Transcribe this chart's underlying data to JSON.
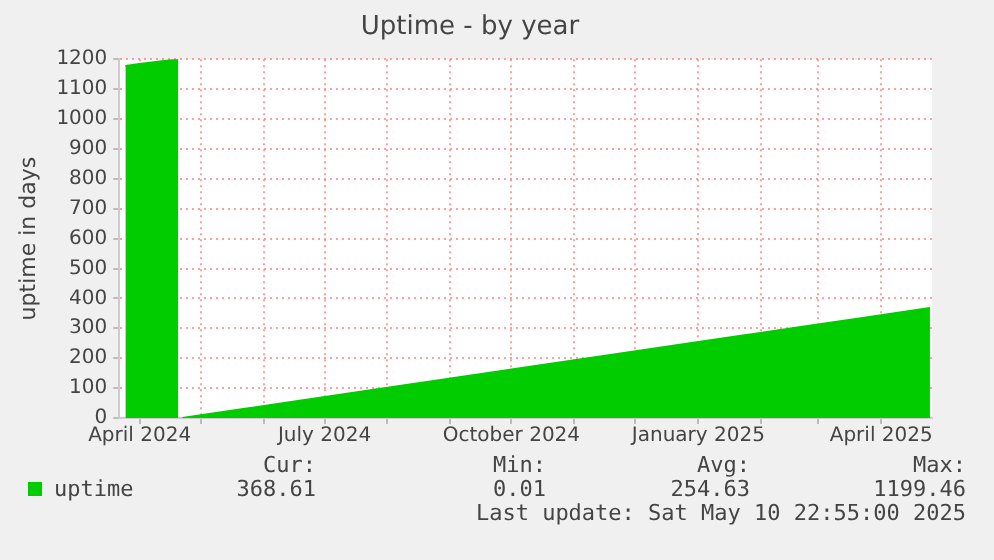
{
  "chart_data": {
    "type": "area",
    "title": "Uptime - by year",
    "ylabel": "uptime in days",
    "x": [
      "2024-03-25",
      "2024-04-01",
      "2024-04-08",
      "2024-04-15",
      "2024-04-20",
      "2024-04-21",
      "2024-04-22",
      "2024-05-22",
      "2024-06-22",
      "2024-07-22",
      "2024-08-22",
      "2024-09-22",
      "2024-10-22",
      "2024-11-22",
      "2024-12-22",
      "2025-01-22",
      "2025-02-22",
      "2025-03-22",
      "2025-04-25"
    ],
    "series": [
      {
        "name": "uptime",
        "color": "#00cc00",
        "values": [
          1177,
          1184,
          1190,
          1196,
          1199,
          null,
          0,
          30,
          61,
          91,
          122,
          153,
          183,
          214,
          244,
          275,
          306,
          334,
          368
        ]
      }
    ],
    "xlim": [
      "2024-03-22",
      "2025-04-26"
    ],
    "xticks": [
      {
        "value": "2024-04-01",
        "label": "April 2024"
      },
      {
        "value": "2024-05-01",
        "label": null
      },
      {
        "value": "2024-06-01",
        "label": null
      },
      {
        "value": "2024-07-01",
        "label": "July 2024"
      },
      {
        "value": "2024-08-01",
        "label": null
      },
      {
        "value": "2024-09-01",
        "label": null
      },
      {
        "value": "2024-10-01",
        "label": "October 2024"
      },
      {
        "value": "2024-11-01",
        "label": null
      },
      {
        "value": "2024-12-01",
        "label": null
      },
      {
        "value": "2025-01-01",
        "label": "January 2025"
      },
      {
        "value": "2025-02-01",
        "label": null
      },
      {
        "value": "2025-03-01",
        "label": null
      },
      {
        "value": "2025-04-01",
        "label": "April 2025"
      }
    ],
    "ylim": [
      0,
      1200
    ],
    "yticks": [
      0,
      100,
      200,
      300,
      400,
      500,
      600,
      700,
      800,
      900,
      1000,
      1100,
      1200
    ],
    "grid": true,
    "legend": "bottom left",
    "marker": "none",
    "annotations": [
      "Cur:",
      "368.61",
      "Min:",
      "0.01",
      "Avg:",
      "254.63",
      "Max:",
      "1199.46",
      "Last update: Sat May 10 22:55:00 2025"
    ]
  }
}
